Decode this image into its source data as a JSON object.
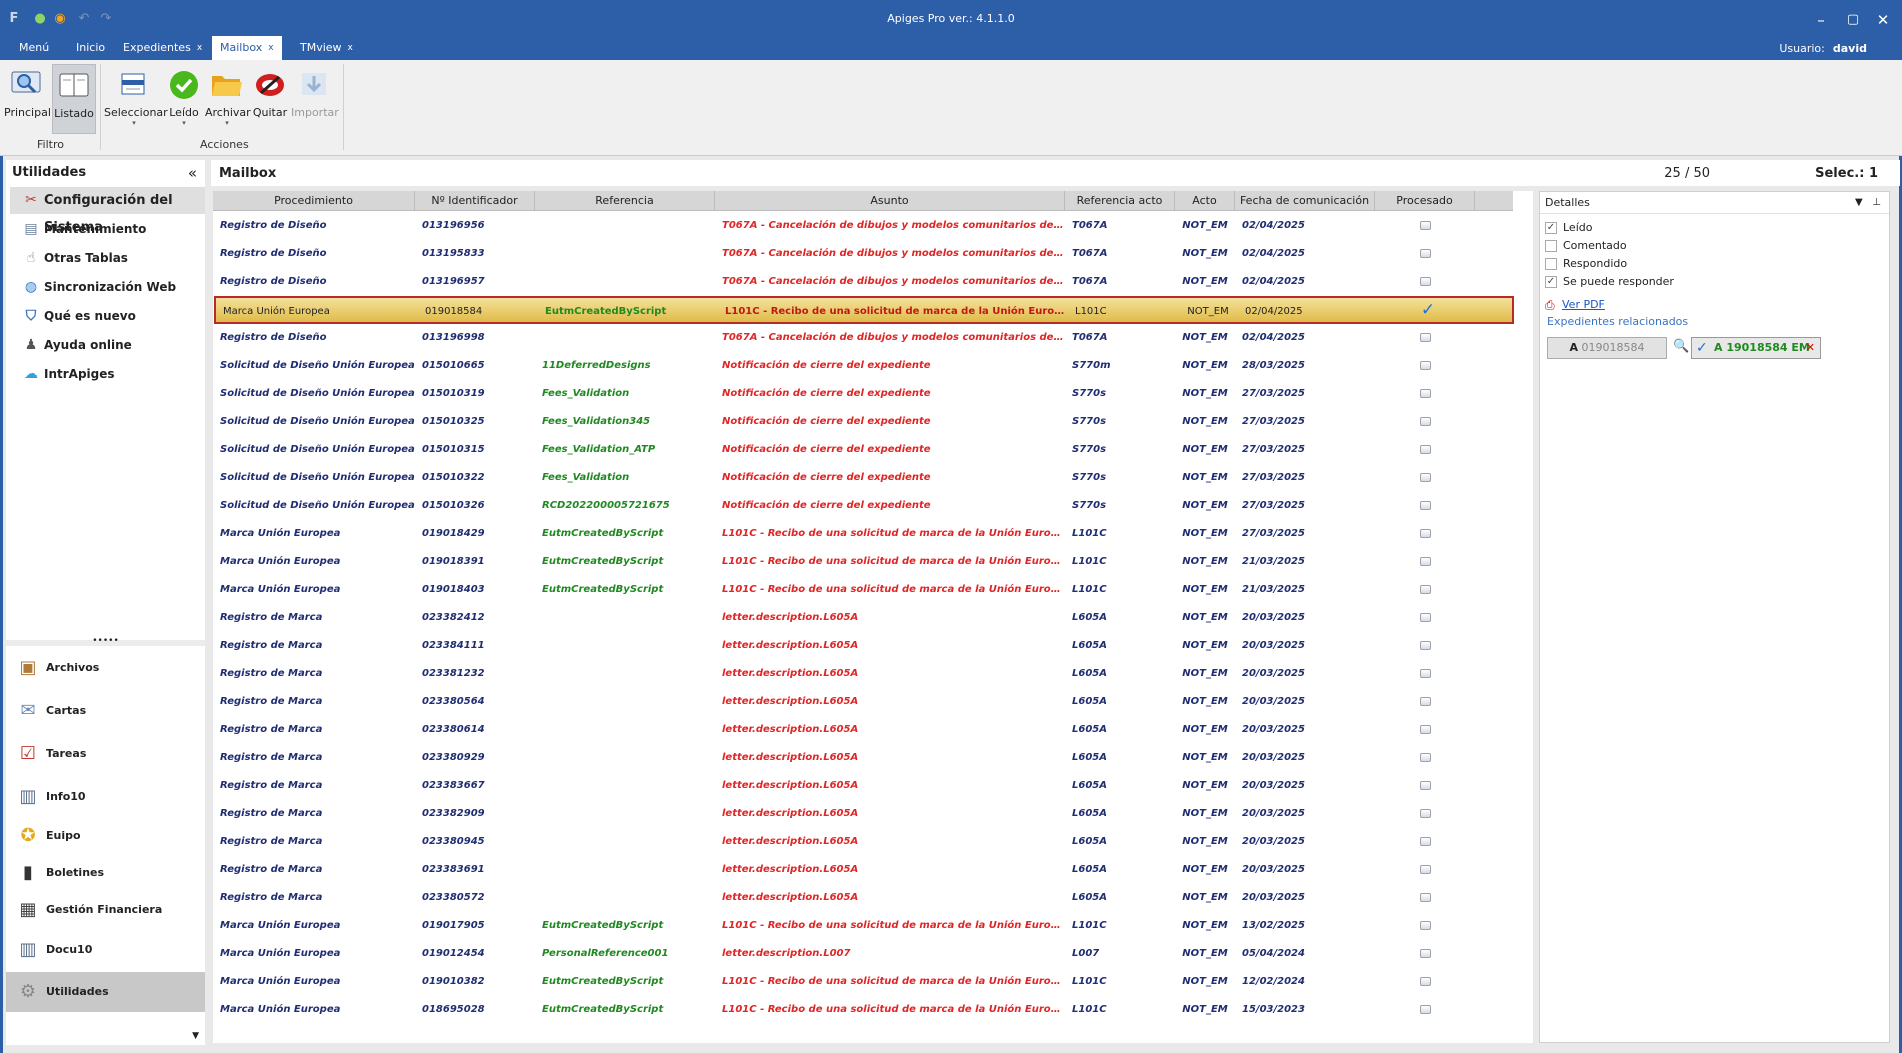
{
  "window": {
    "title": "Apiges Pro ver.: 4.1.1.0"
  },
  "menubar": {
    "tabs": [
      {
        "label": "Menú",
        "closable": false
      },
      {
        "label": "Inicio",
        "closable": false
      },
      {
        "label": "Expedientes",
        "closable": true
      },
      {
        "label": "Mailbox",
        "closable": true,
        "active": true
      },
      {
        "label": "TMview",
        "closable": true
      }
    ],
    "close_glyph": "x",
    "user_label": "Usuario:",
    "user_name": "david"
  },
  "ribbon": {
    "buttons": [
      {
        "label": "Principal",
        "icon": "magnifier-monitor-icon"
      },
      {
        "label": "Listado",
        "icon": "list-icon",
        "selected": true
      },
      {
        "label": "Seleccionar",
        "icon": "select-icon"
      },
      {
        "label": "Leído",
        "icon": "check-circle-icon"
      },
      {
        "label": "Archivar",
        "icon": "folder-icon"
      },
      {
        "label": "Quitar",
        "icon": "remove-icon"
      },
      {
        "label": "Importar",
        "icon": "import-icon",
        "disabled": true
      }
    ],
    "group_filtro": "Filtro",
    "group_acciones": "Acciones"
  },
  "sidebar": {
    "title": "Utilidades",
    "collapse_glyph": "«",
    "items": [
      {
        "label": "Configuración del Sistema",
        "icon": "tools-icon",
        "active": true
      },
      {
        "label": "Mantenimiento",
        "icon": "wrench-icon"
      },
      {
        "label": "Otras Tablas",
        "icon": "hand-pointer-icon"
      },
      {
        "label": "Sincronización Web",
        "icon": "globe-icon"
      },
      {
        "label": "Qué es nuevo",
        "icon": "shield-icon"
      },
      {
        "label": "Ayuda online",
        "icon": "person-icon"
      },
      {
        "label": "IntrApiges",
        "icon": "cloud-icon"
      }
    ],
    "splitter_glyph": "•••••",
    "nav": [
      {
        "label": "Archivos",
        "icon": "archive-box-icon"
      },
      {
        "label": "Cartas",
        "icon": "letter-icon"
      },
      {
        "label": "Tareas",
        "icon": "clipboard-icon"
      },
      {
        "label": "Info10",
        "icon": "chart-icon"
      },
      {
        "label": "Euipo",
        "icon": "team-icon"
      },
      {
        "label": "Boletines",
        "icon": "book-icon"
      },
      {
        "label": "Gestión Financiera",
        "icon": "calculator-icon"
      },
      {
        "label": "Docu10",
        "icon": "document-chart-icon"
      },
      {
        "label": "Utilidades",
        "icon": "gear-icon",
        "active": true
      }
    ]
  },
  "main": {
    "title": "Mailbox",
    "count": "25 / 50",
    "selected": "Selec.: 1"
  },
  "grid": {
    "columns": [
      "Procedimiento",
      "Nº Identificador",
      "Referencia",
      "Asunto",
      "Referencia acto",
      "Acto",
      "Fecha de comunicación",
      "Procesado"
    ],
    "rows": [
      {
        "proc": "Registro de Diseño",
        "nid": "013196956",
        "ref": "",
        "asunto": "T067A - Cancelación de dibujos y modelos comunitarios del Regist...",
        "ra": "T067A",
        "acto": "NOT_EM",
        "fecha": "02/04/2025",
        "procesado": false
      },
      {
        "proc": "Registro de Diseño",
        "nid": "013195833",
        "ref": "",
        "asunto": "T067A - Cancelación de dibujos y modelos comunitarios del Regist...",
        "ra": "T067A",
        "acto": "NOT_EM",
        "fecha": "02/04/2025",
        "procesado": false
      },
      {
        "proc": "Registro de Diseño",
        "nid": "013196957",
        "ref": "",
        "asunto": "T067A - Cancelación de dibujos y modelos comunitarios del Regist...",
        "ra": "T067A",
        "acto": "NOT_EM",
        "fecha": "02/04/2025",
        "procesado": false
      },
      {
        "proc": "Marca Unión Europea",
        "nid": "019018584",
        "ref": "EutmCreatedByScript",
        "asunto": "L101C - Recibo de una solicitud de marca de la Unión Europea y n...",
        "ra": "L101C",
        "acto": "NOT_EM",
        "fecha": "02/04/2025",
        "procesado": true,
        "selected": true
      },
      {
        "proc": "Registro de Diseño",
        "nid": "013196998",
        "ref": "",
        "asunto": "T067A - Cancelación de dibujos y modelos comunitarios del Regist...",
        "ra": "T067A",
        "acto": "NOT_EM",
        "fecha": "02/04/2025",
        "procesado": false
      },
      {
        "proc": "Solicitud de Diseño Unión Europea",
        "nid": "015010665",
        "ref": "11DeferredDesigns",
        "asunto": "Notificación de cierre del expediente",
        "ra": "S770m",
        "acto": "NOT_EM",
        "fecha": "28/03/2025",
        "procesado": false
      },
      {
        "proc": "Solicitud de Diseño Unión Europea",
        "nid": "015010319",
        "ref": "Fees_Validation",
        "asunto": "Notificación de cierre del expediente",
        "ra": "S770s",
        "acto": "NOT_EM",
        "fecha": "27/03/2025",
        "procesado": false
      },
      {
        "proc": "Solicitud de Diseño Unión Europea",
        "nid": "015010325",
        "ref": "Fees_Validation345",
        "asunto": "Notificación de cierre del expediente",
        "ra": "S770s",
        "acto": "NOT_EM",
        "fecha": "27/03/2025",
        "procesado": false
      },
      {
        "proc": "Solicitud de Diseño Unión Europea",
        "nid": "015010315",
        "ref": "Fees_Validation_ATP",
        "asunto": "Notificación de cierre del expediente",
        "ra": "S770s",
        "acto": "NOT_EM",
        "fecha": "27/03/2025",
        "procesado": false
      },
      {
        "proc": "Solicitud de Diseño Unión Europea",
        "nid": "015010322",
        "ref": "Fees_Validation",
        "asunto": "Notificación de cierre del expediente",
        "ra": "S770s",
        "acto": "NOT_EM",
        "fecha": "27/03/2025",
        "procesado": false
      },
      {
        "proc": "Solicitud de Diseño Unión Europea",
        "nid": "015010326",
        "ref": "RCD202200005721675",
        "asunto": "Notificación de cierre del expediente",
        "ra": "S770s",
        "acto": "NOT_EM",
        "fecha": "27/03/2025",
        "procesado": false
      },
      {
        "proc": "Marca Unión Europea",
        "nid": "019018429",
        "ref": "EutmCreatedByScript",
        "asunto": "L101C - Recibo de una solicitud de marca de la Unión Europea y no...",
        "ra": "L101C",
        "acto": "NOT_EM",
        "fecha": "27/03/2025",
        "procesado": false
      },
      {
        "proc": "Marca Unión Europea",
        "nid": "019018391",
        "ref": "EutmCreatedByScript",
        "asunto": "L101C - Recibo de una solicitud de marca de la Unión Europea y no...",
        "ra": "L101C",
        "acto": "NOT_EM",
        "fecha": "21/03/2025",
        "procesado": false
      },
      {
        "proc": "Marca Unión Europea",
        "nid": "019018403",
        "ref": "EutmCreatedByScript",
        "asunto": "L101C - Recibo de una solicitud de marca de la Unión Europea y no...",
        "ra": "L101C",
        "acto": "NOT_EM",
        "fecha": "21/03/2025",
        "procesado": false
      },
      {
        "proc": "Registro de Marca",
        "nid": "023382412",
        "ref": "",
        "asunto": "letter.description.L605A",
        "ra": "L605A",
        "acto": "NOT_EM",
        "fecha": "20/03/2025",
        "procesado": false
      },
      {
        "proc": "Registro de Marca",
        "nid": "023384111",
        "ref": "",
        "asunto": "letter.description.L605A",
        "ra": "L605A",
        "acto": "NOT_EM",
        "fecha": "20/03/2025",
        "procesado": false
      },
      {
        "proc": "Registro de Marca",
        "nid": "023381232",
        "ref": "",
        "asunto": "letter.description.L605A",
        "ra": "L605A",
        "acto": "NOT_EM",
        "fecha": "20/03/2025",
        "procesado": false
      },
      {
        "proc": "Registro de Marca",
        "nid": "023380564",
        "ref": "",
        "asunto": "letter.description.L605A",
        "ra": "L605A",
        "acto": "NOT_EM",
        "fecha": "20/03/2025",
        "procesado": false
      },
      {
        "proc": "Registro de Marca",
        "nid": "023380614",
        "ref": "",
        "asunto": "letter.description.L605A",
        "ra": "L605A",
        "acto": "NOT_EM",
        "fecha": "20/03/2025",
        "procesado": false
      },
      {
        "proc": "Registro de Marca",
        "nid": "023380929",
        "ref": "",
        "asunto": "letter.description.L605A",
        "ra": "L605A",
        "acto": "NOT_EM",
        "fecha": "20/03/2025",
        "procesado": false
      },
      {
        "proc": "Registro de Marca",
        "nid": "023383667",
        "ref": "",
        "asunto": "letter.description.L605A",
        "ra": "L605A",
        "acto": "NOT_EM",
        "fecha": "20/03/2025",
        "procesado": false
      },
      {
        "proc": "Registro de Marca",
        "nid": "023382909",
        "ref": "",
        "asunto": "letter.description.L605A",
        "ra": "L605A",
        "acto": "NOT_EM",
        "fecha": "20/03/2025",
        "procesado": false
      },
      {
        "proc": "Registro de Marca",
        "nid": "023380945",
        "ref": "",
        "asunto": "letter.description.L605A",
        "ra": "L605A",
        "acto": "NOT_EM",
        "fecha": "20/03/2025",
        "procesado": false
      },
      {
        "proc": "Registro de Marca",
        "nid": "023383691",
        "ref": "",
        "asunto": "letter.description.L605A",
        "ra": "L605A",
        "acto": "NOT_EM",
        "fecha": "20/03/2025",
        "procesado": false
      },
      {
        "proc": "Registro de Marca",
        "nid": "023380572",
        "ref": "",
        "asunto": "letter.description.L605A",
        "ra": "L605A",
        "acto": "NOT_EM",
        "fecha": "20/03/2025",
        "procesado": false
      },
      {
        "proc": "Marca Unión Europea",
        "nid": "019017905",
        "ref": "EutmCreatedByScript",
        "asunto": "L101C - Recibo de una solicitud de marca de la Unión Europea y no...",
        "ra": "L101C",
        "acto": "NOT_EM",
        "fecha": "13/02/2025",
        "procesado": false
      },
      {
        "proc": "Marca Unión Europea",
        "nid": "019012454",
        "ref": "PersonalReference001",
        "asunto": "letter.description.L007",
        "ra": "L007",
        "acto": "NOT_EM",
        "fecha": "05/04/2024",
        "procesado": false
      },
      {
        "proc": "Marca Unión Europea",
        "nid": "019010382",
        "ref": "EutmCreatedByScript",
        "asunto": "L101C - Recibo de una solicitud de marca de la Unión Europea y no...",
        "ra": "L101C",
        "acto": "NOT_EM",
        "fecha": "12/02/2024",
        "procesado": false
      },
      {
        "proc": "Marca Unión Europea",
        "nid": "018695028",
        "ref": "EutmCreatedByScript",
        "asunto": "L101C - Recibo de una solicitud de marca de la Unión Europea y no...",
        "ra": "L101C",
        "acto": "NOT_EM",
        "fecha": "15/03/2023",
        "procesado": false
      }
    ]
  },
  "details": {
    "title": "Detalles",
    "checks": [
      {
        "label": "Leído",
        "checked": true
      },
      {
        "label": "Comentado",
        "checked": false
      },
      {
        "label": "Respondido",
        "checked": false
      },
      {
        "label": "Se puede responder",
        "checked": true
      }
    ],
    "pdf_link": "Ver PDF",
    "related_title": "Expedientes relacionados",
    "expediente_prefix": "A",
    "expediente_num": "019018584",
    "linked_expediente": "A 19018584 EM",
    "remove_glyph": "✕",
    "checkmark_glyph": "✓"
  },
  "colors": {
    "titlebar": "#2d5ea8",
    "procedimiento_text": "#1f2d72",
    "referencia_text": "#1f8a1f",
    "asunto_text": "#e02525",
    "selected_row": "#e8c85a",
    "selected_border": "#b52b2b"
  }
}
